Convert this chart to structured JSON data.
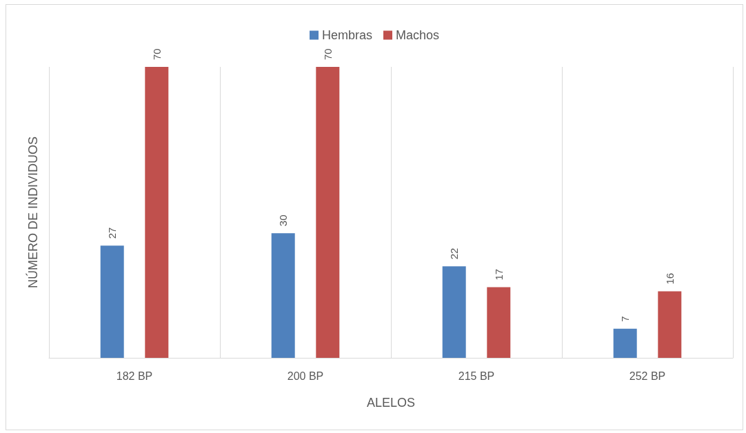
{
  "chart_data": {
    "type": "bar",
    "xlabel": "ALELOS",
    "ylabel": "NÚMERO DE INDIVIDUOS",
    "categories": [
      "182 BP",
      "200 BP",
      "215 BP",
      "252 BP"
    ],
    "series": [
      {
        "name": "Hembras",
        "color": "#4f81bd",
        "values": [
          27,
          30,
          22,
          7
        ]
      },
      {
        "name": "Machos",
        "color": "#c0504d",
        "values": [
          70,
          70,
          17,
          16
        ]
      }
    ],
    "data_labels": true,
    "grid": "x",
    "legend": "top"
  }
}
